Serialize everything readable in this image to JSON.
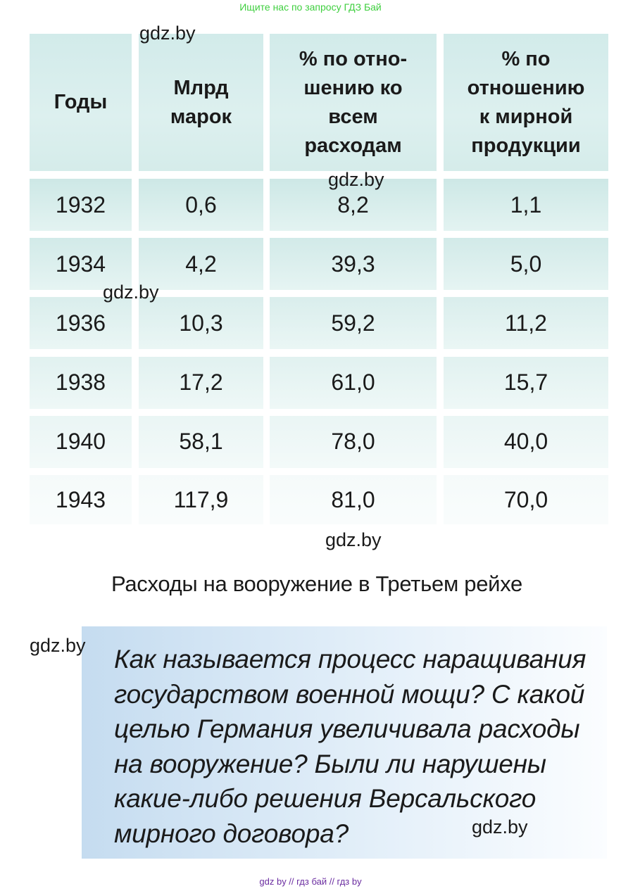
{
  "top_link": "Ищите нас по запросу ГДЗ Бай",
  "table": {
    "headers": [
      "Годы",
      "Млрд марок",
      "% по отно-шению ко всем расходам",
      "% по отношению к мирной продукции"
    ],
    "header_lines": [
      [
        "Годы"
      ],
      [
        "Млрд",
        "марок"
      ],
      [
        "% по отно-",
        "шению ко",
        "всем",
        "расходам"
      ],
      [
        "% по",
        "отношению",
        "к мирной",
        "продукции"
      ]
    ],
    "rows": [
      [
        "1932",
        "0,6",
        "8,2",
        "1,1"
      ],
      [
        "1934",
        "4,2",
        "39,3",
        "5,0"
      ],
      [
        "1936",
        "10,3",
        "59,2",
        "11,2"
      ],
      [
        "1938",
        "17,2",
        "61,0",
        "15,7"
      ],
      [
        "1940",
        "58,1",
        "78,0",
        "40,0"
      ],
      [
        "1943",
        "117,9",
        "81,0",
        "70,0"
      ]
    ]
  },
  "caption": "Расходы на вооружение в Третьем рейхе",
  "question_lines": [
    "Как называется процесс наращивания",
    "государством военной мощи? С какой",
    "целью Германия увеличивала расходы",
    "на вооружение? Были ли нарушены",
    "какие-либо решения Версальского",
    "мирного договора?"
  ],
  "watermark": "gdz.by",
  "footer": "gdz by  //  гдз бай  //  гдз by",
  "colors": {
    "header_bg": "#d2ebea",
    "question_bg": "#c5dcf0",
    "top_link": "#3fcf3f",
    "footer": "#6a2ca0"
  }
}
